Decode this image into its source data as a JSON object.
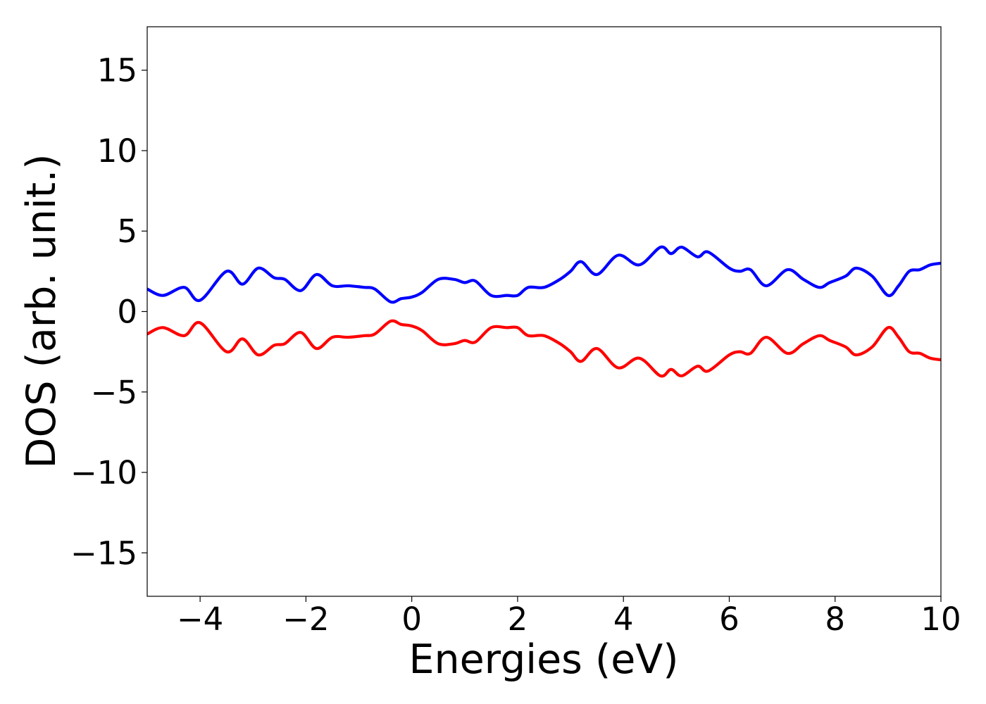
{
  "chart_data": {
    "type": "line",
    "xlabel": "Energies (eV)",
    "ylabel": "DOS (arb. unit.)",
    "xlim": [
      -5,
      10
    ],
    "ylim": [
      -17.7,
      17.7
    ],
    "xticks": [
      -4,
      -2,
      0,
      2,
      4,
      6,
      8,
      10
    ],
    "xtick_labels": [
      "−4",
      "−2",
      "0",
      "2",
      "4",
      "6",
      "8",
      "10"
    ],
    "yticks": [
      15,
      10,
      5,
      0,
      -5,
      -10,
      -15
    ],
    "ytick_labels": [
      "15",
      "10",
      "5",
      "0",
      "−5",
      "−10",
      "−15"
    ],
    "grid": false,
    "series": [
      {
        "color": "#0000ff",
        "x": [
          -5.0,
          -4.7,
          -4.3,
          -4.0,
          -3.5,
          -3.2,
          -2.9,
          -2.6,
          -2.4,
          -2.1,
          -1.8,
          -1.5,
          -1.2,
          -0.9,
          -0.7,
          -0.4,
          -0.2,
          0.0,
          0.2,
          0.5,
          0.8,
          1.0,
          1.2,
          1.5,
          1.8,
          2.0,
          2.2,
          2.5,
          2.8,
          3.0,
          3.2,
          3.5,
          3.9,
          4.3,
          4.7,
          4.9,
          5.1,
          5.4,
          5.6,
          6.0,
          6.2,
          6.4,
          6.7,
          7.1,
          7.4,
          7.7,
          7.9,
          8.2,
          8.4,
          8.7,
          9.0,
          9.2,
          9.4,
          9.6,
          9.8,
          10.0
        ],
        "y": [
          1.4,
          1.0,
          1.5,
          0.7,
          2.5,
          1.7,
          2.7,
          2.1,
          2.0,
          1.3,
          2.3,
          1.6,
          1.6,
          1.5,
          1.4,
          0.6,
          0.8,
          0.9,
          1.2,
          2.0,
          2.0,
          1.8,
          1.9,
          1.0,
          1.0,
          1.0,
          1.5,
          1.5,
          2.0,
          2.5,
          3.1,
          2.3,
          3.5,
          2.9,
          4.0,
          3.6,
          4.0,
          3.4,
          3.7,
          2.7,
          2.5,
          2.6,
          1.6,
          2.6,
          2.0,
          1.5,
          1.8,
          2.2,
          2.7,
          2.2,
          1.0,
          1.6,
          2.5,
          2.6,
          2.9,
          3.0
        ]
      },
      {
        "color": "#ff0000",
        "x": [
          -5.0,
          -4.7,
          -4.3,
          -4.0,
          -3.5,
          -3.2,
          -2.9,
          -2.6,
          -2.4,
          -2.1,
          -1.8,
          -1.5,
          -1.2,
          -0.9,
          -0.7,
          -0.4,
          -0.2,
          0.0,
          0.2,
          0.5,
          0.8,
          1.0,
          1.2,
          1.5,
          1.8,
          2.0,
          2.2,
          2.5,
          2.8,
          3.0,
          3.2,
          3.5,
          3.9,
          4.3,
          4.7,
          4.9,
          5.1,
          5.4,
          5.6,
          6.0,
          6.2,
          6.4,
          6.7,
          7.1,
          7.4,
          7.7,
          7.9,
          8.2,
          8.4,
          8.7,
          9.0,
          9.2,
          9.4,
          9.6,
          9.8,
          10.0
        ],
        "y": [
          -1.4,
          -1.0,
          -1.5,
          -0.7,
          -2.5,
          -1.7,
          -2.7,
          -2.1,
          -2.0,
          -1.3,
          -2.3,
          -1.6,
          -1.6,
          -1.5,
          -1.4,
          -0.6,
          -0.8,
          -0.9,
          -1.2,
          -2.0,
          -2.0,
          -1.8,
          -1.9,
          -1.0,
          -1.0,
          -1.0,
          -1.5,
          -1.5,
          -2.0,
          -2.5,
          -3.1,
          -2.3,
          -3.5,
          -2.9,
          -4.0,
          -3.6,
          -4.0,
          -3.4,
          -3.7,
          -2.7,
          -2.5,
          -2.6,
          -1.6,
          -2.6,
          -2.0,
          -1.5,
          -1.8,
          -2.2,
          -2.7,
          -2.2,
          -1.0,
          -1.6,
          -2.5,
          -2.6,
          -2.9,
          -3.0
        ]
      }
    ]
  }
}
